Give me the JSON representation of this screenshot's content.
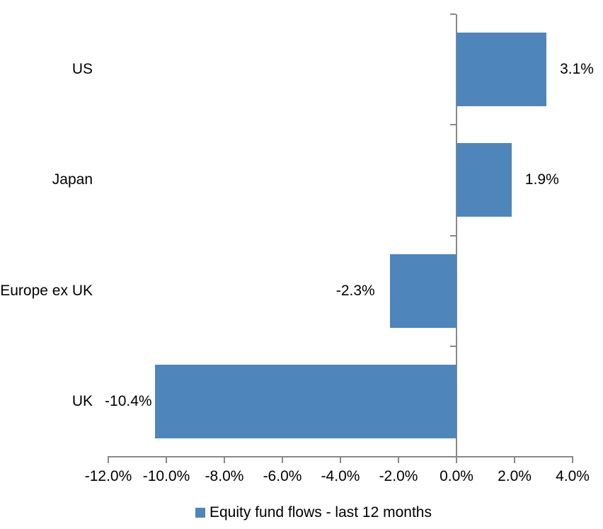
{
  "chart_data": {
    "type": "bar",
    "orientation": "horizontal",
    "title": "",
    "xlabel": "",
    "ylabel": "",
    "categories": [
      "US",
      "Japan",
      "Europe ex UK",
      "UK"
    ],
    "series": [
      {
        "name": "Equity fund flows - last 12 months",
        "values": [
          3.1,
          1.9,
          -2.3,
          -10.4
        ],
        "value_labels": [
          "3.1%",
          "1.9%",
          "-2.3%",
          "-10.4%"
        ]
      }
    ],
    "xlim": [
      -12,
      4
    ],
    "x_ticks": [
      -12,
      -10,
      -8,
      -6,
      -4,
      -2,
      0,
      2,
      4
    ],
    "x_tick_labels": [
      "-12.0%",
      "-10.0%",
      "-8.0%",
      "-6.0%",
      "-4.0%",
      "-2.0%",
      "0.0%",
      "2.0%",
      "4.0%"
    ],
    "grid": false,
    "legend_position": "bottom",
    "bar_color": "#4E86BB",
    "axis_color": "#898989",
    "text_color": "#000000",
    "background_color": "#FFFFFF"
  },
  "legend": {
    "label": "Equity fund flows - last 12 months"
  }
}
